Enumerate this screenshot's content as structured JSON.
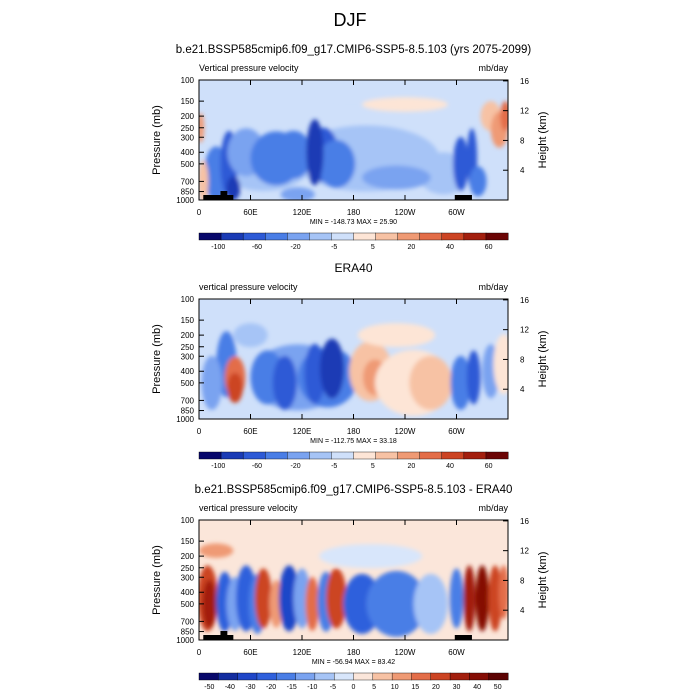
{
  "page": {
    "title": "DJF"
  },
  "panels": [
    {
      "title": "b.e21.BSSP585cmip6.f09_g17.CMIP6-SSP5-8.5.103 (yrs 2075-2099)",
      "left_label": "Vertical pressure velocity",
      "right_label": "mb/day",
      "ylabel_left": "Pressure (mb)",
      "ylabel_right": "Height (km)",
      "stats": "MIN = -148.73  MAX = 25.90",
      "colorbar_labels": [
        "-100",
        "-60",
        "-20",
        "-5",
        "5",
        "20",
        "40",
        "60"
      ]
    },
    {
      "title": "ERA40",
      "left_label": "vertical pressure velocity",
      "right_label": "mb/day",
      "ylabel_left": "Pressure (mb)",
      "ylabel_right": "Height (km)",
      "stats": "MIN = -112.75  MAX = 33.18",
      "colorbar_labels": [
        "-100",
        "-60",
        "-20",
        "-5",
        "5",
        "20",
        "40",
        "60"
      ]
    },
    {
      "title": "b.e21.BSSP585cmip6.f09_g17.CMIP6-SSP5-8.5.103 - ERA40",
      "left_label": "vertical pressure velocity",
      "right_label": "mb/day",
      "ylabel_left": "Pressure (mb)",
      "ylabel_right": "Height (km)",
      "stats": "MIN = -56.94  MAX = 83.42",
      "colorbar_labels": [
        "-50",
        "-40",
        "-30",
        "-20",
        "-15",
        "-10",
        "-5",
        "0",
        "5",
        "10",
        "15",
        "20",
        "30",
        "40",
        "50"
      ]
    }
  ],
  "colors": {
    "seq_abs": [
      "#08086b",
      "#1a3bb5",
      "#2d5ad6",
      "#4a7ee6",
      "#7aa3f0",
      "#a6c4f6",
      "#cfe0fa",
      "#fde5d6",
      "#f7c2a4",
      "#ef9a74",
      "#e36d48",
      "#cc4423",
      "#a31f0e",
      "#6b0505"
    ],
    "seq_diff": [
      "#08086b",
      "#132da0",
      "#1f46c8",
      "#2f60dc",
      "#4a7ee6",
      "#7aa3f0",
      "#a6c4f6",
      "#d8e6fb",
      "#fbe6da",
      "#f7c2a4",
      "#ef9a74",
      "#e36d48",
      "#cc4423",
      "#a31f0e",
      "#850d05",
      "#5c0303"
    ],
    "axis": "#000000",
    "topography": "#000000"
  },
  "chart_data": [
    {
      "type": "heatmap",
      "title": "b.e21.BSSP585cmip6.f09_g17.CMIP6-SSP5-8.5.103 (yrs 2075-2099)",
      "x": "longitude 0-360",
      "x_ticks": [
        "0",
        "60E",
        "120E",
        "180",
        "120W",
        "60W"
      ],
      "y_ticks_pressure_mb": [
        "100",
        "150",
        "200",
        "250",
        "300",
        "400",
        "500",
        "700",
        "850",
        "1000"
      ],
      "y_ticks_height_km": [
        "4",
        "8",
        "12",
        "16"
      ],
      "ylabel": "Pressure (mb)",
      "y2label": "Height (km)",
      "units": "mb/day",
      "min": -148.73,
      "max": 25.9,
      "levels": [
        -100,
        -80,
        -60,
        -40,
        -20,
        -10,
        -5,
        0,
        5,
        10,
        20,
        30,
        40,
        50,
        60
      ]
    },
    {
      "type": "heatmap",
      "title": "ERA40",
      "x": "longitude 0-360",
      "x_ticks": [
        "0",
        "60E",
        "120E",
        "180",
        "120W",
        "60W"
      ],
      "y_ticks_pressure_mb": [
        "100",
        "150",
        "200",
        "250",
        "300",
        "400",
        "500",
        "700",
        "850",
        "1000"
      ],
      "y_ticks_height_km": [
        "4",
        "8",
        "12",
        "16"
      ],
      "ylabel": "Pressure (mb)",
      "y2label": "Height (km)",
      "units": "mb/day",
      "min": -112.75,
      "max": 33.18,
      "levels": [
        -100,
        -80,
        -60,
        -40,
        -20,
        -10,
        -5,
        0,
        5,
        10,
        20,
        30,
        40,
        50,
        60
      ]
    },
    {
      "type": "heatmap",
      "title": "b.e21.BSSP585cmip6.f09_g17.CMIP6-SSP5-8.5.103 - ERA40",
      "x": "longitude 0-360",
      "x_ticks": [
        "0",
        "60E",
        "120E",
        "180",
        "120W",
        "60W"
      ],
      "y_ticks_pressure_mb": [
        "100",
        "150",
        "200",
        "250",
        "300",
        "400",
        "500",
        "700",
        "850",
        "1000"
      ],
      "y_ticks_height_km": [
        "4",
        "8",
        "12",
        "16"
      ],
      "ylabel": "Pressure (mb)",
      "y2label": "Height (km)",
      "units": "mb/day",
      "min": -56.94,
      "max": 83.42,
      "levels": [
        -50,
        -40,
        -30,
        -20,
        -15,
        -10,
        -5,
        0,
        5,
        10,
        15,
        20,
        30,
        40,
        50
      ]
    }
  ]
}
